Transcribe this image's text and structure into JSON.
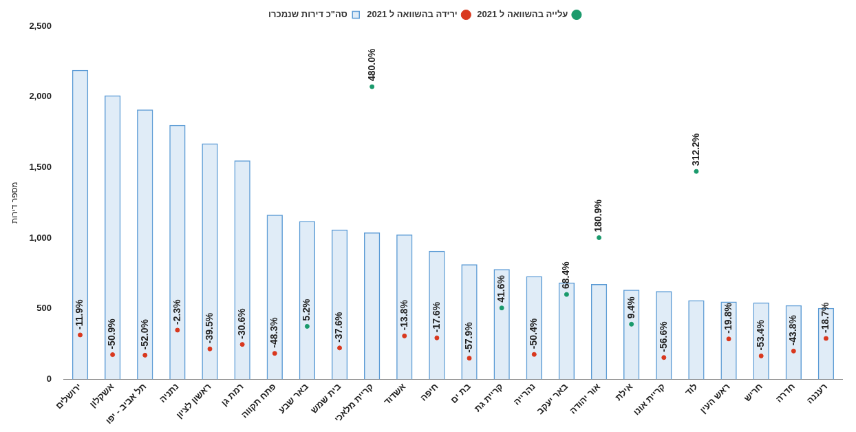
{
  "chart_data": {
    "type": "bar",
    "ylabel": "מספר דירות",
    "categories": [
      "ירושלים",
      "אשקלון",
      "תל אביב - יפו",
      "נתניה",
      "ראשון לציון",
      "רמת גן",
      "פתח תקווה",
      "באר שבע",
      "בית שמש",
      "קריית מלאכי",
      "אשדוד",
      "חיפה",
      "בת ים",
      "קריית גת",
      "נהרייה",
      "באר יעקב",
      "אור יהודה",
      "אילת",
      "קריית אונו",
      "לוד",
      "ראש העין",
      "חריש",
      "חדרה",
      "רעננה"
    ],
    "series": [
      {
        "name": "סה\"כ דירות שנמכרו",
        "color": "#5b9bd5",
        "values": [
          2190,
          2010,
          1910,
          1800,
          1670,
          1550,
          1165,
          1120,
          1060,
          1040,
          1025,
          910,
          815,
          780,
          730,
          685,
          675,
          635,
          625,
          560,
          550,
          545,
          525,
          505
        ]
      },
      {
        "name": "עלייה בהשוואה ל 2021",
        "type": "scatter",
        "axis": "y2",
        "color": "#1a9a6c",
        "values": [
          null,
          null,
          null,
          null,
          null,
          null,
          null,
          5.2,
          null,
          480.0,
          null,
          null,
          null,
          41.6,
          null,
          68.4,
          180.9,
          9.4,
          null,
          312.2,
          null,
          null,
          null,
          null
        ],
        "value_labels": [
          null,
          null,
          null,
          null,
          null,
          null,
          null,
          "5.2%",
          null,
          "480.0%",
          null,
          null,
          null,
          "41.6%",
          null,
          "68.4%",
          "180.9%",
          "9.4%",
          null,
          "312.2%",
          null,
          null,
          null,
          null
        ]
      },
      {
        "name": "ירידה בהשוואה ל 2021",
        "type": "scatter",
        "axis": "y2",
        "color": "#d9381e",
        "values": [
          -11.9,
          -50.9,
          -52.0,
          -2.3,
          -39.5,
          -30.6,
          -48.3,
          null,
          -37.6,
          null,
          -13.8,
          -17.6,
          -57.9,
          null,
          -50.4,
          null,
          null,
          null,
          -56.6,
          null,
          -19.8,
          -53.4,
          -43.8,
          -18.7
        ],
        "value_labels": [
          "-11.9%",
          "-50.9%",
          "-52.0%",
          "-2.3%",
          "-39.5%",
          "-30.6%",
          "-48.3%",
          null,
          "-37.6%",
          null,
          "-13.8%",
          "-17.6%",
          "-57.9%",
          null,
          "-50.4%",
          null,
          null,
          null,
          "-56.6%",
          null,
          "-19.8%",
          "-53.4%",
          "-43.8%",
          "-18.7%"
        ]
      }
    ],
    "ylim": [
      0,
      2500
    ],
    "yticks": [
      0,
      {
        "value": 500,
        "label": "500"
      },
      {
        "value": 1000,
        "label": "1,000"
      },
      {
        "value": 1500,
        "label": "1,500"
      },
      {
        "value": 2000,
        "label": "2,000"
      },
      {
        "value": 2500,
        "label": "2,500"
      }
    ],
    "legend": "top",
    "marker": "circle",
    "grid": false
  }
}
